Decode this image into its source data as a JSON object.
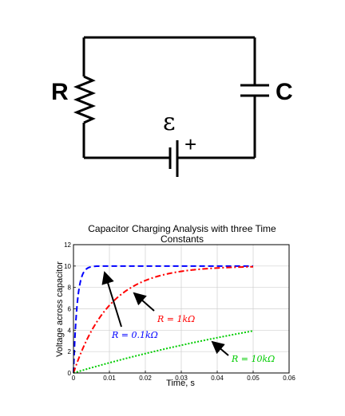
{
  "circuit": {
    "resistor_label": "R",
    "capacitor_label": "C",
    "emf_symbol": "ε",
    "battery_polarity": "+"
  },
  "chart_data": {
    "type": "line",
    "title_line1": "Capacitor Charging Analysis with three Time",
    "title_line2": "Constants",
    "xlabel": "Time, s",
    "ylabel": "Voltage across capacitor",
    "xlim": [
      0,
      0.06
    ],
    "ylim": [
      0,
      12
    ],
    "xticks": [
      "0",
      "0.01",
      "0.02",
      "0.03",
      "0.04",
      "0.05",
      "0.06"
    ],
    "yticks": [
      "0",
      "2",
      "4",
      "6",
      "8",
      "10",
      "12"
    ],
    "grid": true,
    "series": [
      {
        "name": "R = 0.1kΩ",
        "color": "#0000ff",
        "style": "dashed",
        "tau": 0.001,
        "emf": 10,
        "x_end": 0.05
      },
      {
        "name": "R = 1kΩ",
        "color": "#ff0000",
        "style": "dashdot",
        "tau": 0.01,
        "emf": 10,
        "x_end": 0.05
      },
      {
        "name": "R = 10kΩ",
        "color": "#00cc00",
        "style": "dotted",
        "tau": 0.1,
        "emf": 10,
        "x_end": 0.05
      }
    ],
    "annotations": [
      {
        "text": "R = 0.1kΩ",
        "series": 0
      },
      {
        "text": "R = 1kΩ",
        "series": 1
      },
      {
        "text": "R = 10kΩ",
        "series": 2
      }
    ]
  }
}
